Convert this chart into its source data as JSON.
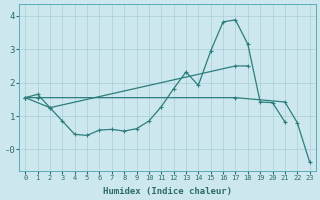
{
  "xlabel": "Humidex (Indice chaleur)",
  "bg_color": "#cce8ee",
  "grid_color": "#aacdd6",
  "line_color": "#2d7d7d",
  "xlim": [
    -0.5,
    23.5
  ],
  "ylim": [
    -0.65,
    4.35
  ],
  "xticks": [
    0,
    1,
    2,
    3,
    4,
    5,
    6,
    7,
    8,
    9,
    10,
    11,
    12,
    13,
    14,
    15,
    16,
    17,
    18,
    19,
    20,
    21,
    22,
    23
  ],
  "yticks": [
    0,
    1,
    2,
    3,
    4
  ],
  "ytick_labels": [
    "-0",
    "1",
    "2",
    "3",
    "4"
  ],
  "line1_x": [
    0,
    1,
    2,
    3,
    4,
    5,
    6,
    7,
    8,
    9,
    10,
    11,
    12,
    13,
    14,
    15,
    16,
    17,
    18,
    19,
    20,
    21
  ],
  "line1_y": [
    1.55,
    1.65,
    1.25,
    0.85,
    0.45,
    0.42,
    0.58,
    0.6,
    0.55,
    0.62,
    0.85,
    1.28,
    1.82,
    2.32,
    1.92,
    2.95,
    3.82,
    3.88,
    3.15,
    1.42,
    1.4,
    0.82
  ],
  "line2_x": [
    0,
    2,
    17,
    18
  ],
  "line2_y": [
    1.55,
    1.25,
    2.5,
    2.5
  ],
  "line3_x": [
    0,
    1,
    17,
    21,
    22,
    23
  ],
  "line3_y": [
    1.55,
    1.55,
    1.55,
    1.42,
    0.8,
    -0.38
  ]
}
